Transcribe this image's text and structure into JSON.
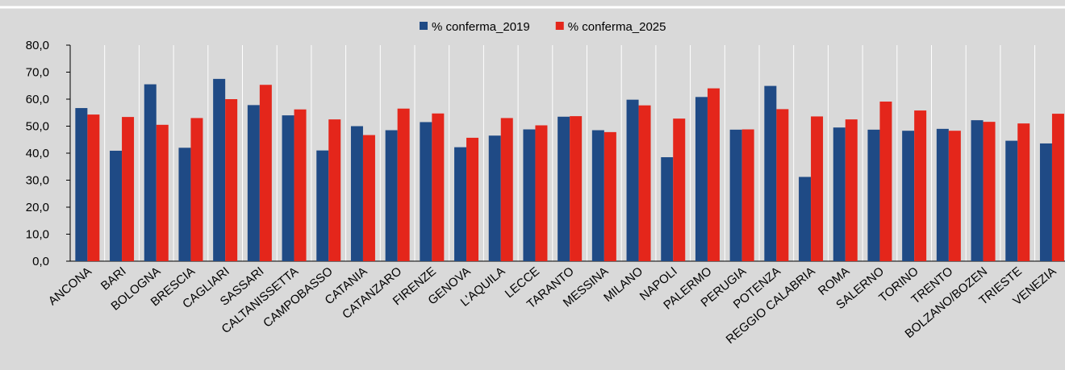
{
  "chart_data": {
    "type": "bar",
    "categories": [
      "ANCONA",
      "BARI",
      "BOLOGNA",
      "BRESCIA",
      "CAGLIARI",
      "SASSARI",
      "CALTANISSETTA",
      "CAMPOBASSO",
      "CATANIA",
      "CATANZARO",
      "FIRENZE",
      "GENOVA",
      "L'AQUILA",
      "LECCE",
      "TARANTO",
      "MESSINA",
      "MILANO",
      "NAPOLI",
      "PALERMO",
      "PERUGIA",
      "POTENZA",
      "REGGIO CALABRIA",
      "ROMA",
      "SALERNO",
      "TORINO",
      "TRENTO",
      "BOLZANO/BOZEN",
      "TRIESTE",
      "VENEZIA"
    ],
    "series": [
      {
        "name": "% conferma_2019",
        "color": "#1f4a85",
        "values": [
          56.7,
          40.9,
          65.5,
          42,
          67.5,
          57.8,
          54,
          41,
          50,
          48.5,
          51.5,
          42.2,
          46.5,
          48.8,
          53.5,
          48.5,
          59.8,
          38.5,
          60.8,
          48.7,
          64.9,
          31.2,
          49.5,
          48.7,
          48.3,
          49,
          52.2,
          44.6,
          43.6
        ]
      },
      {
        "name": "% conferma_2025",
        "color": "#e4261b",
        "values": [
          54.3,
          53.4,
          50.5,
          53,
          60,
          65.3,
          56.2,
          52.5,
          46.7,
          56.5,
          54.7,
          45.7,
          53,
          50.3,
          53.7,
          47.8,
          57.7,
          52.8,
          64,
          48.8,
          56.3,
          53.6,
          52.5,
          59.1,
          55.8,
          48.3,
          51.6,
          51,
          54.6
        ]
      }
    ],
    "ylim": [
      0,
      80
    ],
    "yticks": [
      {
        "value": 0,
        "label": "0,0"
      },
      {
        "value": 10,
        "label": "10,0"
      },
      {
        "value": 20,
        "label": "20,0"
      },
      {
        "value": 30,
        "label": "30,0"
      },
      {
        "value": 40,
        "label": "40,0"
      },
      {
        "value": 50,
        "label": "50,0"
      },
      {
        "value": 60,
        "label": "60,0"
      },
      {
        "value": 70,
        "label": "70,0"
      },
      {
        "value": 80,
        "label": "80,0"
      }
    ],
    "legend": "top"
  }
}
